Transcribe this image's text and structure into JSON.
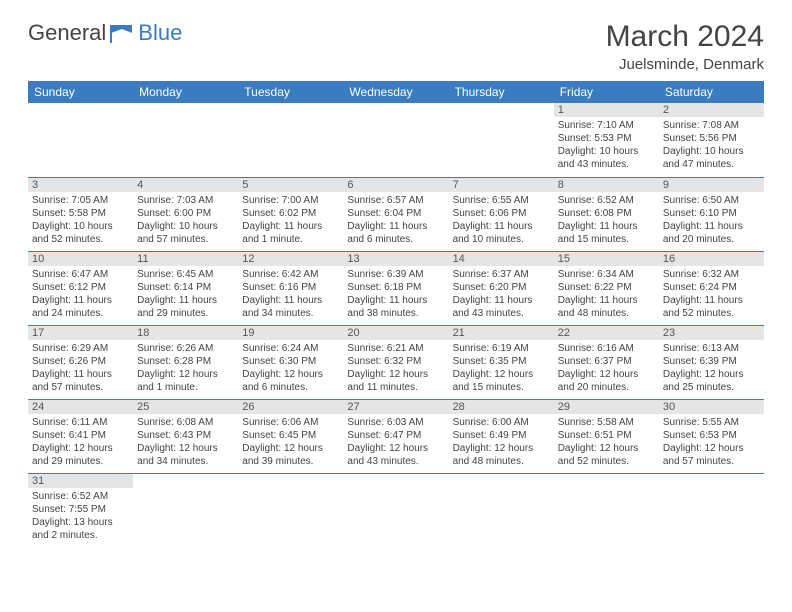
{
  "brand": {
    "part1": "General",
    "part2": "Blue"
  },
  "title": "March 2024",
  "location": "Juelsminde, Denmark",
  "colors": {
    "header_bg": "#3b7bbf",
    "header_text": "#ffffff",
    "daynum_bg": "#e5e5e5",
    "border": "#3b7bbf",
    "text": "#444444"
  },
  "weekdays": [
    "Sunday",
    "Monday",
    "Tuesday",
    "Wednesday",
    "Thursday",
    "Friday",
    "Saturday"
  ],
  "weeks": [
    [
      {
        "n": "",
        "sr": "",
        "ss": "",
        "dl": ""
      },
      {
        "n": "",
        "sr": "",
        "ss": "",
        "dl": ""
      },
      {
        "n": "",
        "sr": "",
        "ss": "",
        "dl": ""
      },
      {
        "n": "",
        "sr": "",
        "ss": "",
        "dl": ""
      },
      {
        "n": "",
        "sr": "",
        "ss": "",
        "dl": ""
      },
      {
        "n": "1",
        "sr": "Sunrise: 7:10 AM",
        "ss": "Sunset: 5:53 PM",
        "dl": "Daylight: 10 hours and 43 minutes."
      },
      {
        "n": "2",
        "sr": "Sunrise: 7:08 AM",
        "ss": "Sunset: 5:56 PM",
        "dl": "Daylight: 10 hours and 47 minutes."
      }
    ],
    [
      {
        "n": "3",
        "sr": "Sunrise: 7:05 AM",
        "ss": "Sunset: 5:58 PM",
        "dl": "Daylight: 10 hours and 52 minutes."
      },
      {
        "n": "4",
        "sr": "Sunrise: 7:03 AM",
        "ss": "Sunset: 6:00 PM",
        "dl": "Daylight: 10 hours and 57 minutes."
      },
      {
        "n": "5",
        "sr": "Sunrise: 7:00 AM",
        "ss": "Sunset: 6:02 PM",
        "dl": "Daylight: 11 hours and 1 minute."
      },
      {
        "n": "6",
        "sr": "Sunrise: 6:57 AM",
        "ss": "Sunset: 6:04 PM",
        "dl": "Daylight: 11 hours and 6 minutes."
      },
      {
        "n": "7",
        "sr": "Sunrise: 6:55 AM",
        "ss": "Sunset: 6:06 PM",
        "dl": "Daylight: 11 hours and 10 minutes."
      },
      {
        "n": "8",
        "sr": "Sunrise: 6:52 AM",
        "ss": "Sunset: 6:08 PM",
        "dl": "Daylight: 11 hours and 15 minutes."
      },
      {
        "n": "9",
        "sr": "Sunrise: 6:50 AM",
        "ss": "Sunset: 6:10 PM",
        "dl": "Daylight: 11 hours and 20 minutes."
      }
    ],
    [
      {
        "n": "10",
        "sr": "Sunrise: 6:47 AM",
        "ss": "Sunset: 6:12 PM",
        "dl": "Daylight: 11 hours and 24 minutes."
      },
      {
        "n": "11",
        "sr": "Sunrise: 6:45 AM",
        "ss": "Sunset: 6:14 PM",
        "dl": "Daylight: 11 hours and 29 minutes."
      },
      {
        "n": "12",
        "sr": "Sunrise: 6:42 AM",
        "ss": "Sunset: 6:16 PM",
        "dl": "Daylight: 11 hours and 34 minutes."
      },
      {
        "n": "13",
        "sr": "Sunrise: 6:39 AM",
        "ss": "Sunset: 6:18 PM",
        "dl": "Daylight: 11 hours and 38 minutes."
      },
      {
        "n": "14",
        "sr": "Sunrise: 6:37 AM",
        "ss": "Sunset: 6:20 PM",
        "dl": "Daylight: 11 hours and 43 minutes."
      },
      {
        "n": "15",
        "sr": "Sunrise: 6:34 AM",
        "ss": "Sunset: 6:22 PM",
        "dl": "Daylight: 11 hours and 48 minutes."
      },
      {
        "n": "16",
        "sr": "Sunrise: 6:32 AM",
        "ss": "Sunset: 6:24 PM",
        "dl": "Daylight: 11 hours and 52 minutes."
      }
    ],
    [
      {
        "n": "17",
        "sr": "Sunrise: 6:29 AM",
        "ss": "Sunset: 6:26 PM",
        "dl": "Daylight: 11 hours and 57 minutes."
      },
      {
        "n": "18",
        "sr": "Sunrise: 6:26 AM",
        "ss": "Sunset: 6:28 PM",
        "dl": "Daylight: 12 hours and 1 minute."
      },
      {
        "n": "19",
        "sr": "Sunrise: 6:24 AM",
        "ss": "Sunset: 6:30 PM",
        "dl": "Daylight: 12 hours and 6 minutes."
      },
      {
        "n": "20",
        "sr": "Sunrise: 6:21 AM",
        "ss": "Sunset: 6:32 PM",
        "dl": "Daylight: 12 hours and 11 minutes."
      },
      {
        "n": "21",
        "sr": "Sunrise: 6:19 AM",
        "ss": "Sunset: 6:35 PM",
        "dl": "Daylight: 12 hours and 15 minutes."
      },
      {
        "n": "22",
        "sr": "Sunrise: 6:16 AM",
        "ss": "Sunset: 6:37 PM",
        "dl": "Daylight: 12 hours and 20 minutes."
      },
      {
        "n": "23",
        "sr": "Sunrise: 6:13 AM",
        "ss": "Sunset: 6:39 PM",
        "dl": "Daylight: 12 hours and 25 minutes."
      }
    ],
    [
      {
        "n": "24",
        "sr": "Sunrise: 6:11 AM",
        "ss": "Sunset: 6:41 PM",
        "dl": "Daylight: 12 hours and 29 minutes."
      },
      {
        "n": "25",
        "sr": "Sunrise: 6:08 AM",
        "ss": "Sunset: 6:43 PM",
        "dl": "Daylight: 12 hours and 34 minutes."
      },
      {
        "n": "26",
        "sr": "Sunrise: 6:06 AM",
        "ss": "Sunset: 6:45 PM",
        "dl": "Daylight: 12 hours and 39 minutes."
      },
      {
        "n": "27",
        "sr": "Sunrise: 6:03 AM",
        "ss": "Sunset: 6:47 PM",
        "dl": "Daylight: 12 hours and 43 minutes."
      },
      {
        "n": "28",
        "sr": "Sunrise: 6:00 AM",
        "ss": "Sunset: 6:49 PM",
        "dl": "Daylight: 12 hours and 48 minutes."
      },
      {
        "n": "29",
        "sr": "Sunrise: 5:58 AM",
        "ss": "Sunset: 6:51 PM",
        "dl": "Daylight: 12 hours and 52 minutes."
      },
      {
        "n": "30",
        "sr": "Sunrise: 5:55 AM",
        "ss": "Sunset: 6:53 PM",
        "dl": "Daylight: 12 hours and 57 minutes."
      }
    ],
    [
      {
        "n": "31",
        "sr": "Sunrise: 6:52 AM",
        "ss": "Sunset: 7:55 PM",
        "dl": "Daylight: 13 hours and 2 minutes."
      },
      {
        "n": "",
        "sr": "",
        "ss": "",
        "dl": ""
      },
      {
        "n": "",
        "sr": "",
        "ss": "",
        "dl": ""
      },
      {
        "n": "",
        "sr": "",
        "ss": "",
        "dl": ""
      },
      {
        "n": "",
        "sr": "",
        "ss": "",
        "dl": ""
      },
      {
        "n": "",
        "sr": "",
        "ss": "",
        "dl": ""
      },
      {
        "n": "",
        "sr": "",
        "ss": "",
        "dl": ""
      }
    ]
  ]
}
